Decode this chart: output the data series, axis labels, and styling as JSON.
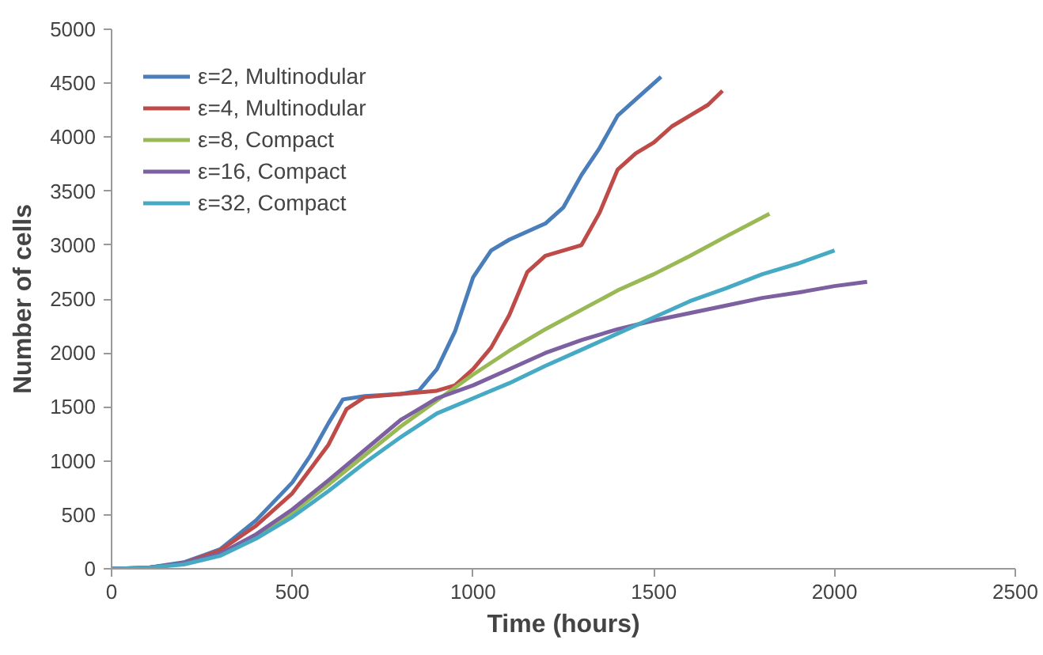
{
  "chart_data": {
    "type": "line",
    "xlabel": "Time (hours)",
    "ylabel": "Number of cells",
    "xlim": [
      0,
      2500
    ],
    "ylim": [
      0,
      5000
    ],
    "xticks": [
      0,
      500,
      1000,
      1500,
      2000,
      2500
    ],
    "yticks": [
      0,
      500,
      1000,
      1500,
      2000,
      2500,
      3000,
      3500,
      4000,
      4500,
      5000
    ],
    "grid": false,
    "legend": "top left",
    "marker": "none",
    "line_style": "solid",
    "series": [
      {
        "name": "ε=2, Multinodular",
        "color": "#4a7ebb",
        "x": [
          0,
          100,
          200,
          300,
          400,
          500,
          550,
          600,
          640,
          700,
          800,
          850,
          900,
          950,
          1000,
          1050,
          1100,
          1200,
          1250,
          1300,
          1350,
          1400,
          1450,
          1520
        ],
        "values": [
          0,
          10,
          60,
          180,
          450,
          800,
          1050,
          1350,
          1570,
          1600,
          1620,
          1650,
          1850,
          2200,
          2700,
          2950,
          3050,
          3200,
          3350,
          3650,
          3900,
          4200,
          4350,
          4560
        ]
      },
      {
        "name": "ε=4, Multinodular",
        "color": "#be4b48",
        "x": [
          0,
          100,
          200,
          300,
          400,
          500,
          600,
          650,
          700,
          800,
          900,
          950,
          1000,
          1050,
          1100,
          1150,
          1200,
          1250,
          1300,
          1350,
          1400,
          1450,
          1500,
          1550,
          1600,
          1650,
          1690
        ],
        "values": [
          0,
          10,
          50,
          170,
          400,
          700,
          1150,
          1480,
          1590,
          1620,
          1650,
          1700,
          1850,
          2050,
          2350,
          2750,
          2900,
          2950,
          3000,
          3300,
          3700,
          3850,
          3950,
          4100,
          4200,
          4300,
          4430
        ]
      },
      {
        "name": "ε=8, Compact",
        "color": "#98b954",
        "x": [
          300,
          400,
          500,
          600,
          700,
          800,
          900,
          1000,
          1100,
          1200,
          1300,
          1400,
          1500,
          1600,
          1700,
          1820
        ],
        "values": [
          130,
          300,
          520,
          780,
          1050,
          1320,
          1560,
          1800,
          2020,
          2220,
          2400,
          2580,
          2730,
          2900,
          3080,
          3290
        ]
      },
      {
        "name": "ε=16, Compact",
        "color": "#7d60a0",
        "x": [
          0,
          100,
          200,
          300,
          400,
          500,
          600,
          700,
          800,
          900,
          1000,
          1100,
          1200,
          1300,
          1400,
          1500,
          1600,
          1700,
          1800,
          1900,
          2000,
          2090
        ],
        "values": [
          0,
          10,
          50,
          140,
          320,
          550,
          820,
          1100,
          1380,
          1580,
          1700,
          1850,
          2000,
          2120,
          2220,
          2300,
          2370,
          2440,
          2510,
          2560,
          2620,
          2660
        ]
      },
      {
        "name": "ε=32, Compact",
        "color": "#46aac5",
        "x": [
          0,
          100,
          200,
          300,
          400,
          500,
          600,
          700,
          800,
          900,
          1000,
          1100,
          1200,
          1300,
          1400,
          1500,
          1600,
          1700,
          1800,
          1900,
          2000
        ],
        "values": [
          0,
          10,
          40,
          120,
          280,
          480,
          720,
          980,
          1220,
          1440,
          1580,
          1720,
          1880,
          2030,
          2180,
          2330,
          2480,
          2600,
          2730,
          2830,
          2950
        ]
      }
    ]
  }
}
